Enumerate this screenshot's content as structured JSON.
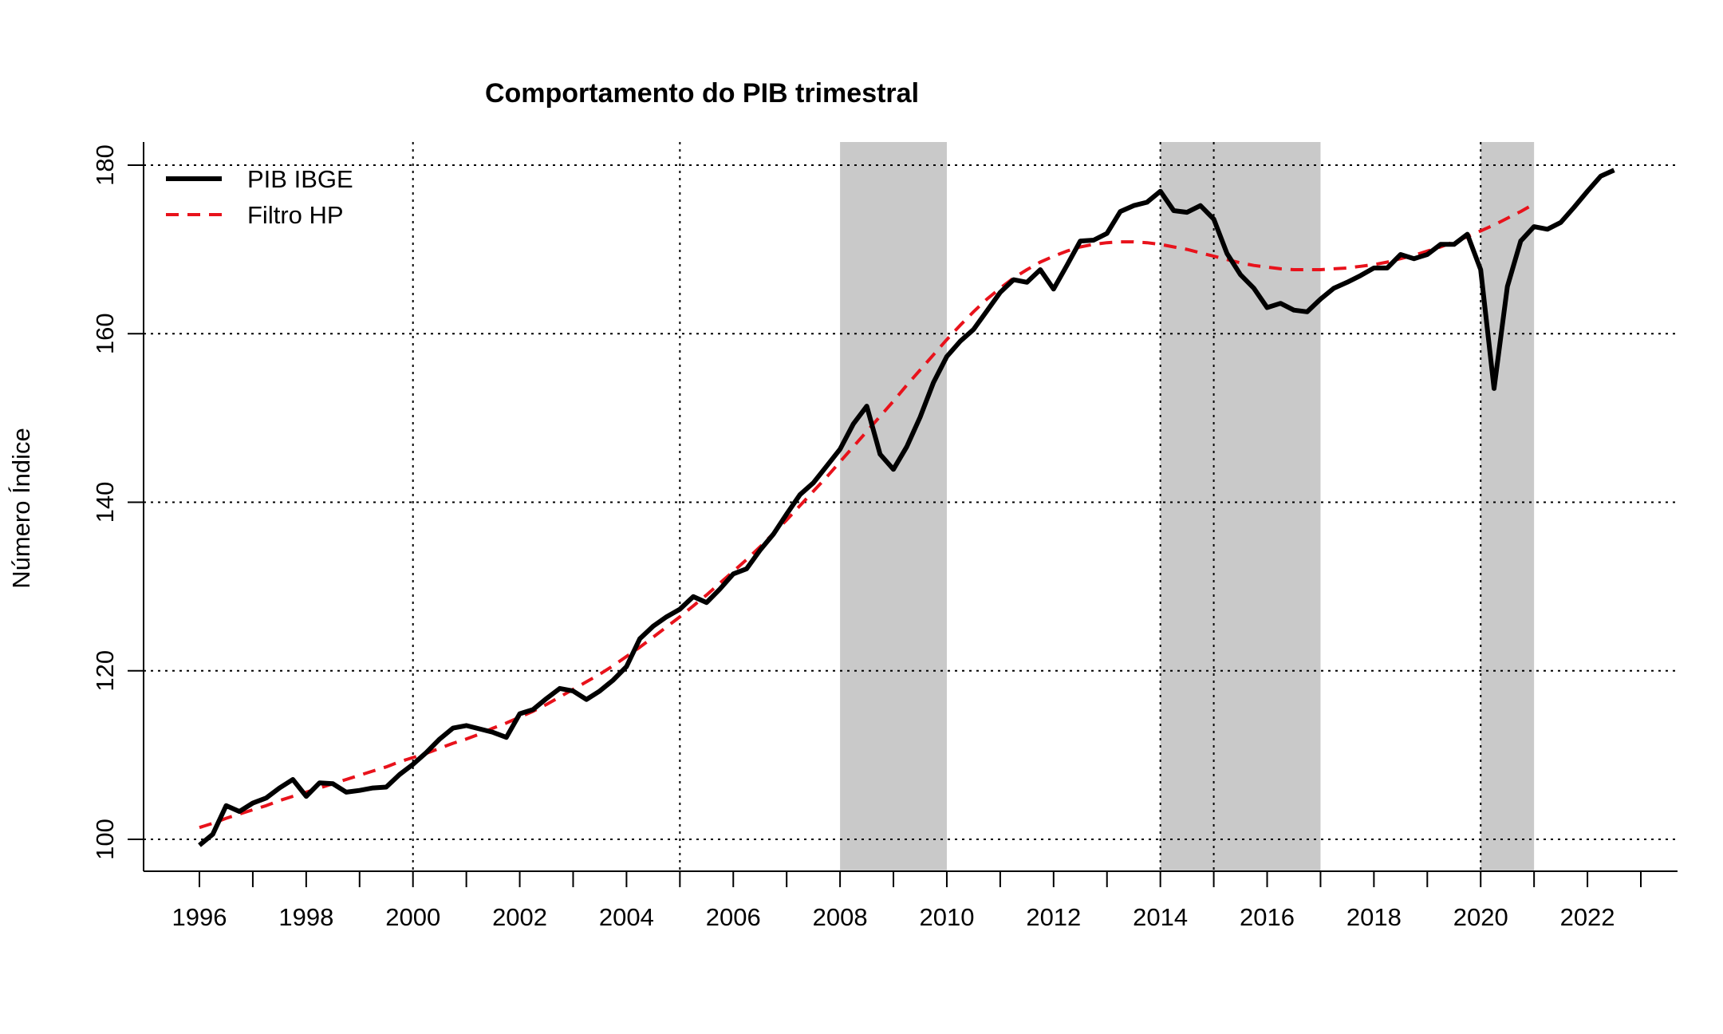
{
  "chart_data": {
    "type": "line",
    "title": "Comportamento do PIB trimestral",
    "xlabel": "",
    "ylabel": "Número Índice",
    "xlim": [
      1996,
      2023.5
    ],
    "ylim": [
      100,
      180
    ],
    "x_ticks": [
      "1996",
      "1997",
      "1998",
      "1999",
      "2000",
      "2001",
      "2002",
      "2003",
      "2004",
      "2005",
      "2006",
      "2007",
      "2008",
      "2009",
      "2010",
      "2011",
      "2012",
      "2013",
      "2014",
      "2015",
      "2016",
      "2017",
      "2018",
      "2019",
      "2020",
      "2021",
      "2022",
      "2023"
    ],
    "x_tick_labels": [
      "1996",
      "1998",
      "2000",
      "2002",
      "2004",
      "2006",
      "2008",
      "2010",
      "2012",
      "2014",
      "2016",
      "2018",
      "2020",
      "2022"
    ],
    "y_ticks": [
      "100",
      "120",
      "140",
      "160",
      "180"
    ],
    "grid": {
      "x": [
        "2000",
        "2005",
        "2014",
        "2015",
        "2020"
      ],
      "y": [
        "100",
        "120",
        "140",
        "160",
        "180"
      ],
      "style": "dotted"
    },
    "recession_bands": [
      {
        "start": 2008.0,
        "end": 2010.0
      },
      {
        "start": 2014.0,
        "end": 2017.0
      },
      {
        "start": 2020.0,
        "end": 2021.0
      }
    ],
    "legend": {
      "position": "top-left",
      "entries": [
        {
          "label": "PIB IBGE",
          "style": "solid",
          "color": "#000000"
        },
        {
          "label": "Filtro HP",
          "style": "dashed",
          "color": "#e8121b"
        }
      ]
    },
    "series": [
      {
        "name": "PIB IBGE",
        "color": "#000000",
        "style": "solid",
        "x_start": 1996.0,
        "x_step": 0.25,
        "values": [
          99.3,
          100.6,
          104.0,
          103.3,
          104.3,
          104.9,
          106.1,
          107.1,
          105.1,
          106.7,
          106.6,
          105.6,
          105.8,
          106.1,
          106.2,
          107.7,
          108.9,
          110.3,
          111.9,
          113.2,
          113.5,
          113.1,
          112.7,
          112.1,
          114.9,
          115.4,
          116.7,
          117.9,
          117.6,
          116.6,
          117.6,
          118.9,
          120.5,
          123.8,
          125.3,
          126.4,
          127.3,
          128.8,
          128.1,
          129.7,
          131.5,
          132.1,
          134.3,
          136.2,
          138.6,
          140.9,
          142.3,
          144.3,
          146.3,
          149.3,
          151.4,
          145.7,
          143.9,
          146.6,
          150.1,
          154.2,
          157.3,
          159.1,
          160.5,
          162.7,
          164.9,
          166.4,
          166.1,
          167.6,
          165.3,
          168.1,
          171.0,
          171.1,
          171.9,
          174.5,
          175.2,
          175.6,
          176.9,
          174.6,
          174.4,
          175.2,
          173.6,
          169.5,
          167.0,
          165.4,
          163.1,
          163.6,
          162.8,
          162.6,
          164.1,
          165.4,
          166.1,
          166.9,
          167.8,
          167.8,
          169.4,
          168.9,
          169.4,
          170.6,
          170.6,
          171.8,
          167.6,
          153.5,
          165.6,
          171.0,
          172.7,
          172.4,
          173.2,
          175.0,
          176.9,
          178.7,
          179.4
        ]
      },
      {
        "name": "Filtro HP",
        "color": "#e8121b",
        "style": "dashed",
        "x_start": 1996.0,
        "x_step": 0.25,
        "values": [
          101.4,
          101.9,
          102.5,
          103.0,
          103.5,
          104.0,
          104.6,
          105.1,
          105.6,
          106.1,
          106.6,
          107.1,
          107.6,
          108.1,
          108.6,
          109.2,
          109.7,
          110.2,
          110.8,
          111.4,
          111.9,
          112.5,
          113.2,
          113.8,
          114.5,
          115.2,
          116.0,
          116.9,
          117.8,
          118.7,
          119.6,
          120.6,
          121.7,
          122.8,
          124.0,
          125.2,
          126.4,
          127.7,
          129.0,
          130.4,
          131.8,
          133.2,
          134.7,
          136.3,
          137.9,
          139.6,
          141.3,
          143.0,
          144.8,
          146.6,
          148.4,
          150.2,
          152.0,
          153.9,
          155.7,
          157.5,
          159.3,
          161.0,
          162.6,
          164.1,
          165.4,
          166.6,
          167.6,
          168.5,
          169.2,
          169.8,
          170.3,
          170.6,
          170.8,
          170.9,
          170.9,
          170.8,
          170.6,
          170.3,
          170.0,
          169.6,
          169.2,
          168.8,
          168.4,
          168.1,
          167.9,
          167.7,
          167.6,
          167.6,
          167.6,
          167.7,
          167.8,
          168.0,
          168.2,
          168.5,
          168.9,
          169.3,
          169.8,
          170.3,
          170.9,
          171.5,
          172.2,
          172.9,
          173.7,
          174.5,
          175.4
        ]
      }
    ]
  }
}
